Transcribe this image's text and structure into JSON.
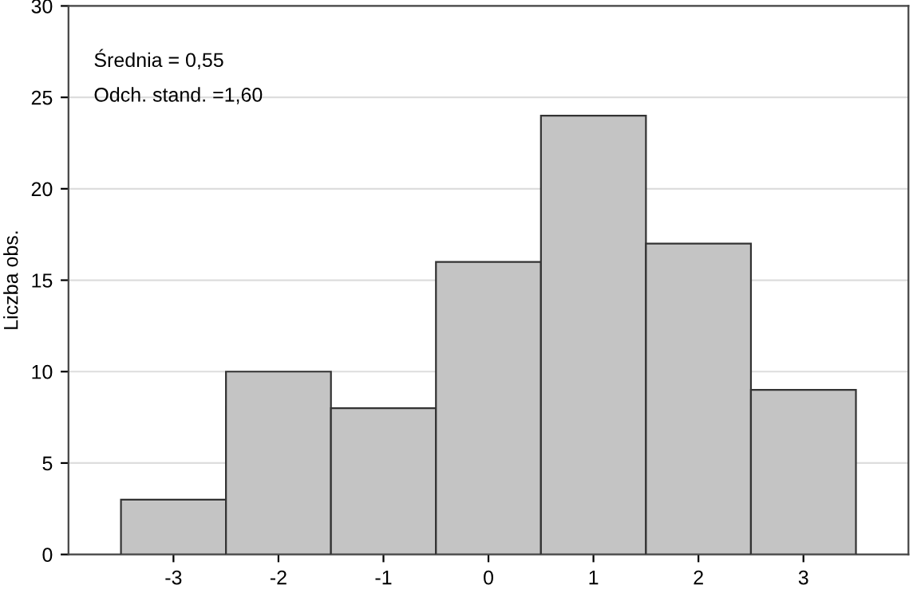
{
  "chart_data": {
    "type": "histogram",
    "ylabel": "Liczba obs.",
    "bins": [
      -3.5,
      -2.5,
      -1.5,
      -0.5,
      0.5,
      1.5,
      2.5,
      3.5
    ],
    "values": [
      3,
      10,
      8,
      16,
      24,
      17,
      9
    ],
    "color": "#c4c4c4",
    "xlim": [
      -4,
      4
    ],
    "xticks": [
      -3,
      -2,
      -1,
      0,
      1,
      2,
      3
    ],
    "ylim": [
      0,
      30
    ],
    "yticks": [
      0,
      5,
      10,
      15,
      20,
      25,
      30
    ],
    "grid": "y",
    "annotations": [
      "Średnia = 0,55",
      "Odch. stand. =1,60"
    ]
  }
}
